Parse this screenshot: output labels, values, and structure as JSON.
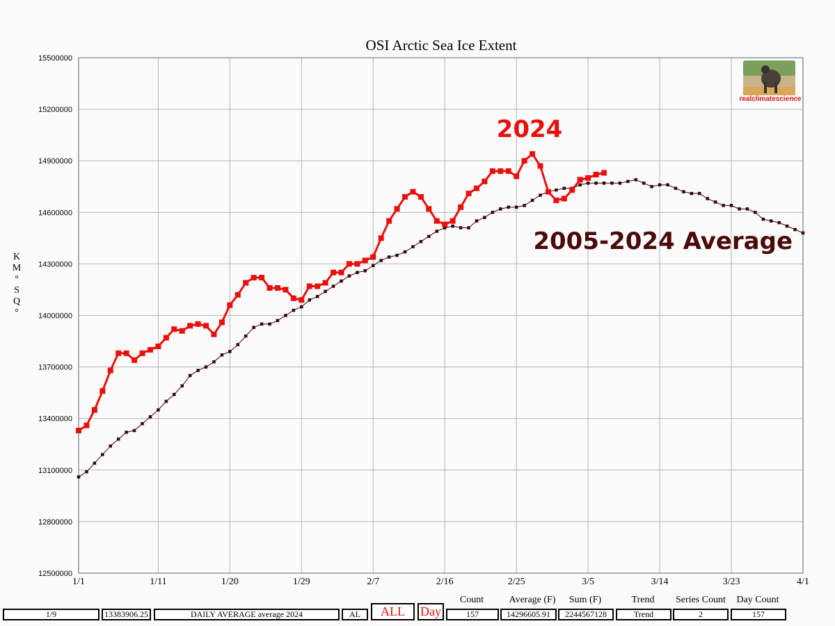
{
  "chart_data": {
    "type": "line",
    "title": "OSI Arctic Sea Ice Extent",
    "ylabel": "KM°SQ°",
    "ylim": [
      12500000,
      15500000
    ],
    "yticks": [
      12500000,
      12800000,
      13100000,
      13400000,
      13700000,
      14000000,
      14300000,
      14600000,
      14900000,
      15200000,
      15500000
    ],
    "xlim": [
      "1/1",
      "4/1"
    ],
    "xticks": [
      "1/1",
      "1/11",
      "1/20",
      "1/29",
      "2/7",
      "2/16",
      "2/25",
      "3/5",
      "3/14",
      "3/23",
      "4/1"
    ],
    "grid": true,
    "annotations": [
      "2024",
      "2005-2024 Average"
    ],
    "series": [
      {
        "color": "#e8100c",
        "x": [
          "1/1",
          "1/2",
          "1/3",
          "1/4",
          "1/5",
          "1/6",
          "1/7",
          "1/8",
          "1/9",
          "1/10",
          "1/11",
          "1/12",
          "1/13",
          "1/14",
          "1/15",
          "1/16",
          "1/17",
          "1/18",
          "1/19",
          "1/20",
          "1/21",
          "1/22",
          "1/23",
          "1/24",
          "1/25",
          "1/26",
          "1/27",
          "1/28",
          "1/29",
          "1/30",
          "1/31",
          "2/1",
          "2/2",
          "2/3",
          "2/4",
          "2/5",
          "2/6",
          "2/7",
          "2/8",
          "2/9",
          "2/10",
          "2/11",
          "2/12",
          "2/13",
          "2/14",
          "2/15",
          "2/16",
          "2/17",
          "2/18",
          "2/19",
          "2/20",
          "2/21",
          "2/22",
          "2/23",
          "2/24",
          "2/25",
          "2/26",
          "2/27",
          "2/28",
          "2/29",
          "3/1",
          "3/2",
          "3/3",
          "3/4",
          "3/5",
          "3/6",
          "3/7"
        ],
        "values": [
          13330000,
          13360000,
          13450000,
          13560000,
          13680000,
          13780000,
          13780000,
          13740000,
          13780000,
          13800000,
          13820000,
          13870000,
          13920000,
          13910000,
          13940000,
          13950000,
          13940000,
          13890000,
          13960000,
          14060000,
          14120000,
          14190000,
          14220000,
          14220000,
          14160000,
          14160000,
          14150000,
          14100000,
          14090000,
          14170000,
          14170000,
          14190000,
          14250000,
          14250000,
          14300000,
          14300000,
          14320000,
          14340000,
          14450000,
          14550000,
          14620000,
          14690000,
          14720000,
          14690000,
          14620000,
          14550000,
          14530000,
          14550000,
          14630000,
          14710000,
          14740000,
          14780000,
          14840000,
          14840000,
          14840000,
          14810000,
          14900000,
          14940000,
          14870000,
          14720000,
          14670000,
          14680000,
          14730000,
          14790000,
          14800000,
          14820000,
          14830000
        ]
      },
      {
        "color": "#3a0606",
        "x": [
          "1/1",
          "1/2",
          "1/3",
          "1/4",
          "1/5",
          "1/6",
          "1/7",
          "1/8",
          "1/9",
          "1/10",
          "1/11",
          "1/12",
          "1/13",
          "1/14",
          "1/15",
          "1/16",
          "1/17",
          "1/18",
          "1/19",
          "1/20",
          "1/21",
          "1/22",
          "1/23",
          "1/24",
          "1/25",
          "1/26",
          "1/27",
          "1/28",
          "1/29",
          "1/30",
          "1/31",
          "2/1",
          "2/2",
          "2/3",
          "2/4",
          "2/5",
          "2/6",
          "2/7",
          "2/8",
          "2/9",
          "2/10",
          "2/11",
          "2/12",
          "2/13",
          "2/14",
          "2/15",
          "2/16",
          "2/17",
          "2/18",
          "2/19",
          "2/20",
          "2/21",
          "2/22",
          "2/23",
          "2/24",
          "2/25",
          "2/26",
          "2/27",
          "2/28",
          "2/29",
          "3/1",
          "3/2",
          "3/3",
          "3/4",
          "3/5",
          "3/6",
          "3/7",
          "3/8",
          "3/9",
          "3/10",
          "3/11",
          "3/12",
          "3/13",
          "3/14",
          "3/15",
          "3/16",
          "3/17",
          "3/18",
          "3/19",
          "3/20",
          "3/21",
          "3/22",
          "3/23",
          "3/24",
          "3/25",
          "3/26",
          "3/27",
          "3/28",
          "3/29",
          "3/30",
          "3/31",
          "4/1"
        ],
        "values": [
          13060000,
          13090000,
          13140000,
          13190000,
          13240000,
          13280000,
          13320000,
          13330000,
          13370000,
          13410000,
          13450000,
          13500000,
          13540000,
          13590000,
          13650000,
          13680000,
          13700000,
          13730000,
          13770000,
          13790000,
          13830000,
          13880000,
          13930000,
          13950000,
          13950000,
          13970000,
          14000000,
          14030000,
          14050000,
          14090000,
          14110000,
          14140000,
          14170000,
          14200000,
          14230000,
          14250000,
          14260000,
          14290000,
          14320000,
          14340000,
          14350000,
          14370000,
          14400000,
          14430000,
          14460000,
          14490000,
          14510000,
          14520000,
          14510000,
          14510000,
          14550000,
          14570000,
          14600000,
          14620000,
          14630000,
          14630000,
          14640000,
          14670000,
          14700000,
          14720000,
          14730000,
          14740000,
          14740000,
          14760000,
          14770000,
          14770000,
          14770000,
          14770000,
          14770000,
          14780000,
          14790000,
          14770000,
          14750000,
          14760000,
          14760000,
          14740000,
          14720000,
          14710000,
          14710000,
          14680000,
          14660000,
          14640000,
          14640000,
          14620000,
          14620000,
          14600000,
          14560000,
          14550000,
          14540000,
          14520000,
          14500000,
          14480000
        ]
      }
    ]
  },
  "logo": {
    "text": "realclimatescience"
  },
  "bottom_bar": {
    "field_date": "1/9",
    "field_value": "13383906.25",
    "field_series": "DAILY AVERAGE average 2024",
    "field_region": "AL",
    "btn_all": "ALL",
    "btn_day": "Day",
    "count_label": "Count",
    "count_value": "157",
    "average_label": "Average (F)",
    "average_value": "14296605.91",
    "sum_label": "Sum (F)",
    "sum_value": "2244567128",
    "trend_label": "Trend",
    "trend_value": "Trend",
    "series_count_label": "Series Count",
    "series_count_value": "2",
    "day_count_label": "Day Count",
    "day_count_value": "157"
  }
}
